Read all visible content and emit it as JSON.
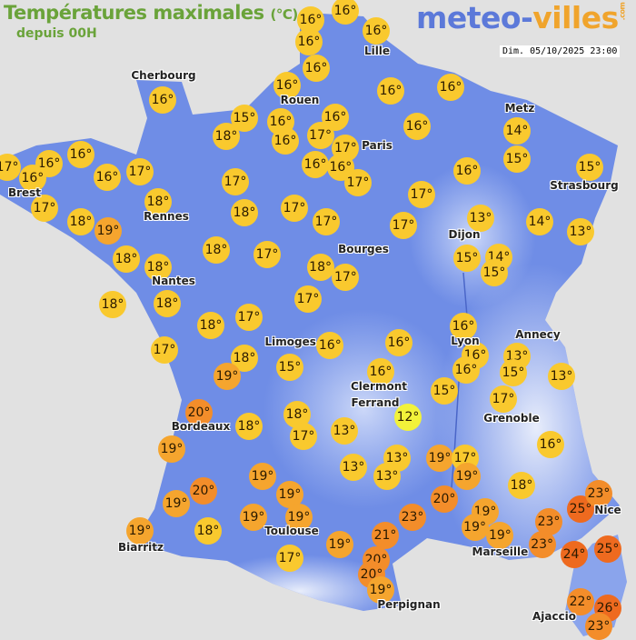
{
  "header": {
    "title": "Températures maximales",
    "title_unit": "(°C)",
    "subtitle": "depuis 00H",
    "logo_part1": "meteo-",
    "logo_part2": "villes",
    "logo_suffix": ".com",
    "datetime": "Dim. 05/10/2025 23:00"
  },
  "colors": {
    "background": "#e1e1e1",
    "land": "#6f8de6",
    "title_green": "#6aa33a",
    "temp_12": "#f2f23a",
    "temp_13_18": "#f9c92e",
    "temp_19": "#f5a52e",
    "temp_20_23": "#f38d2a",
    "temp_24_plus": "#ee6a1f"
  },
  "cities": [
    "Cherbourg",
    "Lille",
    "Rouen",
    "Paris",
    "Metz",
    "Strasbourg",
    "Brest",
    "Rennes",
    "Dijon",
    "Bourges",
    "Nantes",
    "Annecy",
    "Limoges",
    "Lyon",
    "Clermont",
    "Ferrand",
    "Grenoble",
    "Bordeaux",
    "Nice",
    "Toulouse",
    "Marseille",
    "Biarritz",
    "Perpignan",
    "Ajaccio"
  ],
  "temperatures": [
    "16°",
    "16°",
    "16°",
    "16°",
    "16°",
    "16°",
    "16°",
    "16°",
    "16°",
    "15°",
    "16°",
    "16°",
    "16°",
    "18°",
    "16°",
    "17°",
    "17°",
    "16°",
    "17°",
    "16°",
    "16°",
    "16°",
    "17°",
    "16°",
    "16°",
    "17°",
    "16°",
    "14°",
    "15°",
    "15°",
    "17°",
    "18°",
    "17°",
    "18°",
    "17°",
    "17°",
    "18°",
    "19°",
    "17°",
    "17°",
    "13°",
    "14°",
    "13°",
    "18°",
    "17°",
    "18°",
    "18°",
    "18°",
    "17°",
    "15°",
    "14°",
    "15°",
    "18°",
    "18°",
    "17°",
    "17°",
    "18°",
    "17°",
    "18°",
    "16°",
    "16°",
    "16°",
    "16°",
    "16°",
    "13°",
    "15°",
    "13°",
    "15°",
    "19°",
    "16°",
    "15°",
    "17°",
    "20°",
    "18°",
    "18°",
    "17°",
    "13°",
    "12°",
    "16°",
    "19°",
    "13°",
    "13°",
    "13°",
    "19°",
    "17°",
    "19°",
    "18°",
    "19°",
    "20°",
    "19°",
    "19°",
    "19°",
    "19°",
    "20°",
    "23°",
    "19°",
    "19°",
    "19°",
    "23°",
    "25°",
    "23°",
    "19°",
    "18°",
    "19°",
    "21°",
    "23°",
    "24°",
    "25°",
    "17°",
    "20°",
    "20°",
    "19°",
    "22°",
    "26°",
    "23°"
  ]
}
